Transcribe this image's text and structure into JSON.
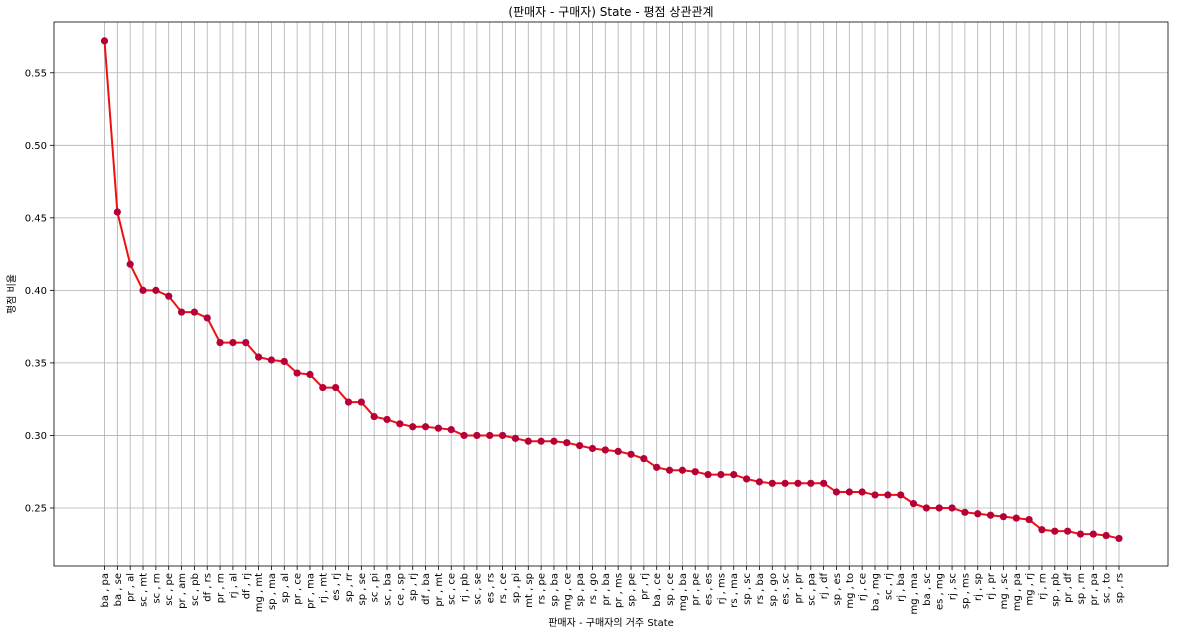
{
  "chart_data": {
    "type": "line",
    "title": "(판매자 - 구매자) State - 평점 상관관계",
    "xlabel": "판매자 - 구매자의 거주 State",
    "ylabel": "평점 비율",
    "ylim": [
      0.21,
      0.585
    ],
    "yticks": [
      "0.25",
      "0.30",
      "0.35",
      "0.40",
      "0.45",
      "0.50",
      "0.55"
    ],
    "grid": true,
    "line_color": "#ee1111",
    "marker_color": "#b5003a",
    "categories": [
      "ba , pa",
      "ba , se",
      "pr , al",
      "sc , mt",
      "sc , rn",
      "sc , pe",
      "pr , am",
      "sc , pb",
      "df , rs",
      "pr , rn",
      "rj , al",
      "df , rj",
      "mg , mt",
      "sp , ma",
      "sp , al",
      "pr , ce",
      "pr , ma",
      "rj , mt",
      "es , rj",
      "sp , rr",
      "sp , se",
      "sc , pi",
      "sc , ba",
      "ce , sp",
      "sp , rj",
      "df , ba",
      "pr , mt",
      "sc , ce",
      "rj , pb",
      "sc , se",
      "es , rs",
      "rs , ce",
      "sp , pi",
      "mt , sp",
      "rs , pe",
      "sp , ba",
      "mg , ce",
      "sp , pa",
      "rs , go",
      "pr , ba",
      "pr , ms",
      "sp , pe",
      "pr , rj",
      "ba , ce",
      "sp , ce",
      "mg , ba",
      "pr , pe",
      "es , es",
      "rj , ms",
      "rs , ma",
      "sp , sc",
      "rs , ba",
      "sp , go",
      "es , sc",
      "pr , pr",
      "sc , pa",
      "rj , df",
      "sp , es",
      "mg , to",
      "rj , ce",
      "ba , mg",
      "sc , rj",
      "rj , ba",
      "mg , ma",
      "ba , sc",
      "es , mg",
      "rj , sc",
      "sp , ms",
      "rj , sp",
      "rj , pr",
      "mg , sc",
      "mg , pa",
      "mg , rj",
      "rj , rn",
      "sp , pb",
      "pr , df",
      "sp , rn",
      "pr , pa",
      "sc , to",
      "sp , rs"
    ],
    "values": [
      0.572,
      0.454,
      0.418,
      0.4,
      0.4,
      0.396,
      0.385,
      0.385,
      0.381,
      0.364,
      0.364,
      0.364,
      0.354,
      0.352,
      0.351,
      0.343,
      0.342,
      0.333,
      0.333,
      0.323,
      0.323,
      0.313,
      0.311,
      0.308,
      0.306,
      0.306,
      0.305,
      0.304,
      0.3,
      0.3,
      0.3,
      0.3,
      0.298,
      0.296,
      0.296,
      0.296,
      0.295,
      0.293,
      0.291,
      0.29,
      0.289,
      0.287,
      0.284,
      0.278,
      0.276,
      0.276,
      0.275,
      0.273,
      0.273,
      0.273,
      0.27,
      0.268,
      0.267,
      0.267,
      0.267,
      0.267,
      0.267,
      0.261,
      0.261,
      0.261,
      0.259,
      0.259,
      0.259,
      0.253,
      0.25,
      0.25,
      0.25,
      0.247,
      0.246,
      0.245,
      0.244,
      0.243,
      0.242,
      0.235,
      0.234,
      0.234,
      0.232,
      0.232,
      0.231,
      0.229
    ]
  }
}
